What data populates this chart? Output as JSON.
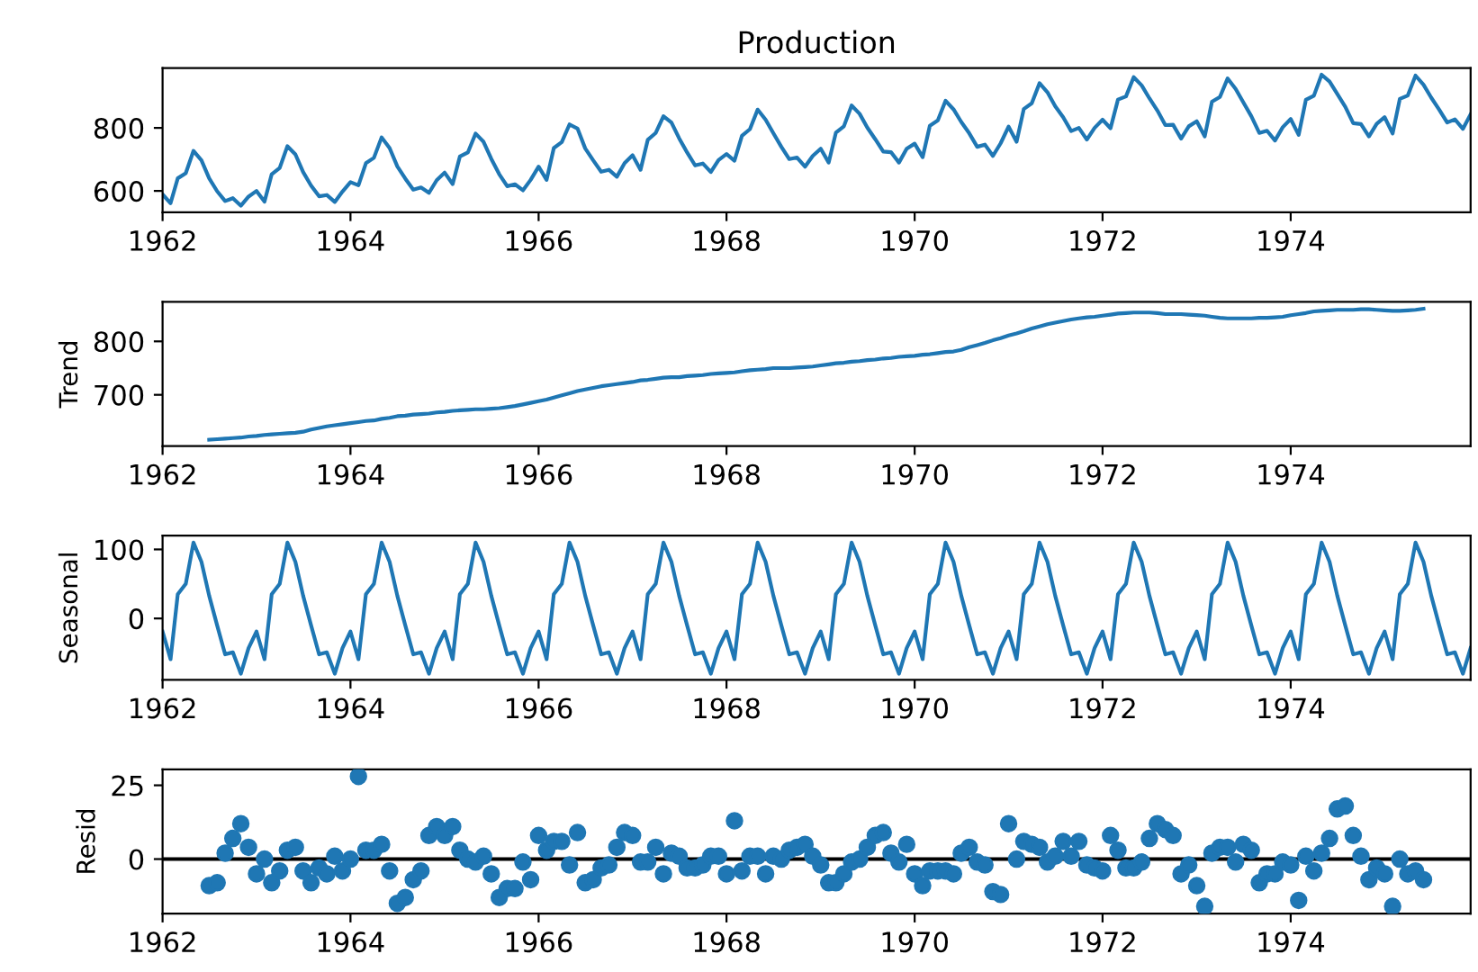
{
  "chart_data": [
    {
      "type": "line",
      "title": "Production",
      "color": "#1f77b4",
      "x": [
        "1962-01",
        "1962-02",
        "1962-03",
        "1962-04",
        "1962-05",
        "1962-06",
        "1962-07",
        "1962-08",
        "1962-09",
        "1962-10",
        "1962-11",
        "1962-12",
        "1963-01",
        "1963-02",
        "1963-03",
        "1963-04",
        "1963-05",
        "1963-06",
        "1963-07",
        "1963-08",
        "1963-09",
        "1963-10",
        "1963-11",
        "1963-12",
        "1964-01",
        "1964-02",
        "1964-03",
        "1964-04",
        "1964-05",
        "1964-06",
        "1964-07",
        "1964-08",
        "1964-09",
        "1964-10",
        "1964-11",
        "1964-12",
        "1965-01",
        "1965-02",
        "1965-03",
        "1965-04",
        "1965-05",
        "1965-06",
        "1965-07",
        "1965-08",
        "1965-09",
        "1965-10",
        "1965-11",
        "1965-12",
        "1966-01",
        "1966-02",
        "1966-03",
        "1966-04",
        "1966-05",
        "1966-06",
        "1966-07",
        "1966-08",
        "1966-09",
        "1966-10",
        "1966-11",
        "1966-12",
        "1967-01",
        "1967-02",
        "1967-03",
        "1967-04",
        "1967-05",
        "1967-06",
        "1967-07",
        "1967-08",
        "1967-09",
        "1967-10",
        "1967-11",
        "1967-12",
        "1968-01",
        "1968-02",
        "1968-03",
        "1968-04",
        "1968-05",
        "1968-06",
        "1968-07",
        "1968-08",
        "1968-09",
        "1968-10",
        "1968-11",
        "1968-12",
        "1969-01",
        "1969-02",
        "1969-03",
        "1969-04",
        "1969-05",
        "1969-06",
        "1969-07",
        "1969-08",
        "1969-09",
        "1969-10",
        "1969-11",
        "1969-12",
        "1970-01",
        "1970-02",
        "1970-03",
        "1970-04",
        "1970-05",
        "1970-06",
        "1970-07",
        "1970-08",
        "1970-09",
        "1970-10",
        "1970-11",
        "1970-12",
        "1971-01",
        "1971-02",
        "1971-03",
        "1971-04",
        "1971-05",
        "1971-06",
        "1971-07",
        "1971-08",
        "1971-09",
        "1971-10",
        "1971-11",
        "1971-12",
        "1972-01",
        "1972-02",
        "1972-03",
        "1972-04",
        "1972-05",
        "1972-06",
        "1972-07",
        "1972-08",
        "1972-09",
        "1972-10",
        "1972-11",
        "1972-12",
        "1973-01",
        "1973-02",
        "1973-03",
        "1973-04",
        "1973-05",
        "1973-06",
        "1973-07",
        "1973-08",
        "1973-09",
        "1973-10",
        "1973-11",
        "1973-12",
        "1974-01",
        "1974-02",
        "1974-03",
        "1974-04",
        "1974-05",
        "1974-06",
        "1974-07",
        "1974-08",
        "1974-09",
        "1974-10",
        "1974-11",
        "1974-12",
        "1975-01",
        "1975-02",
        "1975-03",
        "1975-04",
        "1975-05",
        "1975-06",
        "1975-07",
        "1975-08",
        "1975-09",
        "1975-10",
        "1975-11",
        "1975-12"
      ],
      "values": [
        589,
        561,
        640,
        656,
        727,
        697,
        640,
        599,
        568,
        577,
        553,
        582,
        600,
        566,
        653,
        673,
        742,
        716,
        660,
        617,
        583,
        587,
        565,
        598,
        628,
        618,
        688,
        705,
        770,
        736,
        678,
        639,
        604,
        611,
        594,
        634,
        658,
        622,
        709,
        722,
        782,
        756,
        702,
        653,
        615,
        621,
        602,
        635,
        677,
        635,
        736,
        755,
        811,
        798,
        735,
        697,
        661,
        667,
        645,
        688,
        713,
        667,
        762,
        784,
        837,
        817,
        767,
        722,
        681,
        687,
        660,
        698,
        717,
        696,
        775,
        796,
        858,
        826,
        783,
        740,
        701,
        706,
        677,
        711,
        734,
        690,
        785,
        805,
        871,
        845,
        801,
        764,
        725,
        723,
        690,
        734,
        750,
        707,
        807,
        824,
        886,
        859,
        819,
        783,
        740,
        747,
        711,
        751,
        804,
        756,
        860,
        878,
        942,
        913,
        869,
        834,
        790,
        800,
        763,
        800,
        826,
        799,
        890,
        900,
        961,
        935,
        894,
        855,
        809,
        810,
        766,
        805,
        821,
        773,
        883,
        898,
        957,
        924,
        881,
        837,
        784,
        791,
        760,
        802,
        828,
        778,
        889,
        902,
        969,
        947,
        908,
        867,
        815,
        812,
        773,
        813,
        834,
        782,
        892,
        903,
        966,
        937,
        896,
        858,
        817,
        827,
        797,
        843
      ],
      "xlim": [
        "1962-01",
        "1975-12"
      ],
      "xticks": [
        "1962",
        "1964",
        "1966",
        "1968",
        "1970",
        "1972",
        "1974"
      ],
      "ylim": [
        532,
        990
      ],
      "yticks": [
        600,
        800
      ]
    },
    {
      "type": "line",
      "ylabel": "Trend",
      "color": "#1f77b4",
      "x": [
        "1962-07",
        "1962-08",
        "1962-09",
        "1962-10",
        "1962-11",
        "1962-12",
        "1963-01",
        "1963-02",
        "1963-03",
        "1963-04",
        "1963-05",
        "1963-06",
        "1963-07",
        "1963-08",
        "1963-09",
        "1963-10",
        "1963-11",
        "1963-12",
        "1964-01",
        "1964-02",
        "1964-03",
        "1964-04",
        "1964-05",
        "1964-06",
        "1964-07",
        "1964-08",
        "1964-09",
        "1964-10",
        "1964-11",
        "1964-12",
        "1965-01",
        "1965-02",
        "1965-03",
        "1965-04",
        "1965-05",
        "1965-06",
        "1965-07",
        "1965-08",
        "1965-09",
        "1965-10",
        "1965-11",
        "1965-12",
        "1966-01",
        "1966-02",
        "1966-03",
        "1966-04",
        "1966-05",
        "1966-06",
        "1966-07",
        "1966-08",
        "1966-09",
        "1966-10",
        "1966-11",
        "1966-12",
        "1967-01",
        "1967-02",
        "1967-03",
        "1967-04",
        "1967-05",
        "1967-06",
        "1967-07",
        "1967-08",
        "1967-09",
        "1967-10",
        "1967-11",
        "1967-12",
        "1968-01",
        "1968-02",
        "1968-03",
        "1968-04",
        "1968-05",
        "1968-06",
        "1968-07",
        "1968-08",
        "1968-09",
        "1968-10",
        "1968-11",
        "1968-12",
        "1969-01",
        "1969-02",
        "1969-03",
        "1969-04",
        "1969-05",
        "1969-06",
        "1969-07",
        "1969-08",
        "1969-09",
        "1969-10",
        "1969-11",
        "1969-12",
        "1970-01",
        "1970-02",
        "1970-03",
        "1970-04",
        "1970-05",
        "1970-06",
        "1970-07",
        "1970-08",
        "1970-09",
        "1970-10",
        "1970-11",
        "1970-12",
        "1971-01",
        "1971-02",
        "1971-03",
        "1971-04",
        "1971-05",
        "1971-06",
        "1971-07",
        "1971-08",
        "1971-09",
        "1971-10",
        "1971-11",
        "1971-12",
        "1972-01",
        "1972-02",
        "1972-03",
        "1972-04",
        "1972-05",
        "1972-06",
        "1972-07",
        "1972-08",
        "1972-09",
        "1972-10",
        "1972-11",
        "1972-12",
        "1973-01",
        "1973-02",
        "1973-03",
        "1973-04",
        "1973-05",
        "1973-06",
        "1973-07",
        "1973-08",
        "1973-09",
        "1973-10",
        "1973-11",
        "1973-12",
        "1974-01",
        "1974-02",
        "1974-03",
        "1974-04",
        "1974-05",
        "1974-06",
        "1974-07",
        "1974-08",
        "1974-09",
        "1974-10",
        "1974-11",
        "1974-12",
        "1975-01",
        "1975-02",
        "1975-03",
        "1975-04",
        "1975-05",
        "1975-06"
      ],
      "values": [
        616,
        617,
        618,
        619,
        620,
        622,
        623,
        625,
        626,
        627,
        628,
        629,
        631,
        635,
        638,
        641,
        643,
        645,
        647,
        649,
        651,
        652,
        655,
        657,
        660,
        661,
        663,
        664,
        665,
        667,
        668,
        670,
        671,
        672,
        673,
        673,
        674,
        675,
        677,
        679,
        682,
        685,
        688,
        691,
        695,
        699,
        703,
        707,
        710,
        713,
        716,
        718,
        720,
        722,
        724,
        727,
        728,
        730,
        732,
        733,
        733,
        735,
        736,
        737,
        739,
        740,
        741,
        742,
        744,
        746,
        747,
        748,
        750,
        750,
        750,
        751,
        752,
        753,
        755,
        757,
        759,
        760,
        762,
        763,
        765,
        766,
        768,
        769,
        771,
        772,
        773,
        775,
        776,
        778,
        780,
        781,
        784,
        789,
        793,
        797,
        802,
        806,
        811,
        815,
        819,
        824,
        828,
        832,
        835,
        838,
        841,
        843,
        845,
        846,
        848,
        850,
        852,
        853,
        854,
        854,
        854,
        853,
        851,
        851,
        851,
        850,
        849,
        848,
        846,
        844,
        843,
        843,
        843,
        843,
        844,
        844,
        845,
        846,
        849,
        851,
        853,
        856,
        857,
        858,
        859,
        859,
        859,
        860,
        860,
        859,
        858,
        857,
        857,
        858,
        859,
        861
      ],
      "xlim": [
        "1962-01",
        "1975-12"
      ],
      "xticks": [
        "1962",
        "1964",
        "1966",
        "1968",
        "1970",
        "1972",
        "1974"
      ],
      "ylim": [
        604,
        874
      ],
      "yticks": [
        700,
        800
      ]
    },
    {
      "type": "line",
      "ylabel": "Seasonal",
      "color": "#1f77b4",
      "x": [
        "1962-01",
        "1962-02",
        "1962-03",
        "1962-04",
        "1962-05",
        "1962-06",
        "1962-07",
        "1962-08",
        "1962-09",
        "1962-10",
        "1962-11",
        "1962-12",
        "1963-01",
        "1963-02",
        "1963-03",
        "1963-04",
        "1963-05",
        "1963-06",
        "1963-07",
        "1963-08",
        "1963-09",
        "1963-10",
        "1963-11",
        "1963-12",
        "1964-01",
        "1964-02",
        "1964-03",
        "1964-04",
        "1964-05",
        "1964-06",
        "1964-07",
        "1964-08",
        "1964-09",
        "1964-10",
        "1964-11",
        "1964-12",
        "1965-01",
        "1965-02",
        "1965-03",
        "1965-04",
        "1965-05",
        "1965-06",
        "1965-07",
        "1965-08",
        "1965-09",
        "1965-10",
        "1965-11",
        "1965-12",
        "1966-01",
        "1966-02",
        "1966-03",
        "1966-04",
        "1966-05",
        "1966-06",
        "1966-07",
        "1966-08",
        "1966-09",
        "1966-10",
        "1966-11",
        "1966-12",
        "1967-01",
        "1967-02",
        "1967-03",
        "1967-04",
        "1967-05",
        "1967-06",
        "1967-07",
        "1967-08",
        "1967-09",
        "1967-10",
        "1967-11",
        "1967-12",
        "1968-01",
        "1968-02",
        "1968-03",
        "1968-04",
        "1968-05",
        "1968-06",
        "1968-07",
        "1968-08",
        "1968-09",
        "1968-10",
        "1968-11",
        "1968-12",
        "1969-01",
        "1969-02",
        "1969-03",
        "1969-04",
        "1969-05",
        "1969-06",
        "1969-07",
        "1969-08",
        "1969-09",
        "1969-10",
        "1969-11",
        "1969-12",
        "1970-01",
        "1970-02",
        "1970-03",
        "1970-04",
        "1970-05",
        "1970-06",
        "1970-07",
        "1970-08",
        "1970-09",
        "1970-10",
        "1970-11",
        "1970-12",
        "1971-01",
        "1971-02",
        "1971-03",
        "1971-04",
        "1971-05",
        "1971-06",
        "1971-07",
        "1971-08",
        "1971-09",
        "1971-10",
        "1971-11",
        "1971-12",
        "1972-01",
        "1972-02",
        "1972-03",
        "1972-04",
        "1972-05",
        "1972-06",
        "1972-07",
        "1972-08",
        "1972-09",
        "1972-10",
        "1972-11",
        "1972-12",
        "1973-01",
        "1973-02",
        "1973-03",
        "1973-04",
        "1973-05",
        "1973-06",
        "1973-07",
        "1973-08",
        "1973-09",
        "1973-10",
        "1973-11",
        "1973-12",
        "1974-01",
        "1974-02",
        "1974-03",
        "1974-04",
        "1974-05",
        "1974-06",
        "1974-07",
        "1974-08",
        "1974-09",
        "1974-10",
        "1974-11",
        "1974-12",
        "1975-01",
        "1975-02",
        "1975-03",
        "1975-04",
        "1975-05",
        "1975-06",
        "1975-07",
        "1975-08",
        "1975-09",
        "1975-10",
        "1975-11",
        "1975-12"
      ],
      "values": [
        -19,
        -59,
        35,
        50,
        110,
        82,
        33,
        -10,
        -52,
        -49,
        -80,
        -43,
        -19,
        -59,
        35,
        50,
        110,
        82,
        33,
        -10,
        -52,
        -49,
        -80,
        -43,
        -19,
        -59,
        35,
        50,
        110,
        82,
        33,
        -10,
        -52,
        -49,
        -80,
        -43,
        -19,
        -59,
        35,
        50,
        110,
        82,
        33,
        -10,
        -52,
        -49,
        -80,
        -43,
        -19,
        -59,
        35,
        50,
        110,
        82,
        33,
        -10,
        -52,
        -49,
        -80,
        -43,
        -19,
        -59,
        35,
        50,
        110,
        82,
        33,
        -10,
        -52,
        -49,
        -80,
        -43,
        -19,
        -59,
        35,
        50,
        110,
        82,
        33,
        -10,
        -52,
        -49,
        -80,
        -43,
        -19,
        -59,
        35,
        50,
        110,
        82,
        33,
        -10,
        -52,
        -49,
        -80,
        -43,
        -19,
        -59,
        35,
        50,
        110,
        82,
        33,
        -10,
        -52,
        -49,
        -80,
        -43,
        -19,
        -59,
        35,
        50,
        110,
        82,
        33,
        -10,
        -52,
        -49,
        -80,
        -43,
        -19,
        -59,
        35,
        50,
        110,
        82,
        33,
        -10,
        -52,
        -49,
        -80,
        -43,
        -19,
        -59,
        35,
        50,
        110,
        82,
        33,
        -10,
        -52,
        -49,
        -80,
        -43,
        -19,
        -59,
        35,
        50,
        110,
        82,
        33,
        -10,
        -52,
        -49,
        -80,
        -43,
        -19,
        -59,
        35,
        50,
        110,
        82,
        33,
        -10,
        -52,
        -49,
        -80,
        -43
      ],
      "xlim": [
        "1962-01",
        "1975-12"
      ],
      "xticks": [
        "1962",
        "1964",
        "1966",
        "1968",
        "1970",
        "1972",
        "1974"
      ],
      "ylim": [
        -89,
        120
      ],
      "yticks": [
        0,
        100
      ]
    },
    {
      "type": "scatter",
      "ylabel": "Resid",
      "color": "#1f77b4",
      "marker": "circle",
      "x": [
        "1962-07",
        "1962-08",
        "1962-09",
        "1962-10",
        "1962-11",
        "1962-12",
        "1963-01",
        "1963-02",
        "1963-03",
        "1963-04",
        "1963-05",
        "1963-06",
        "1963-07",
        "1963-08",
        "1963-09",
        "1963-10",
        "1963-11",
        "1963-12",
        "1964-01",
        "1964-02",
        "1964-03",
        "1964-04",
        "1964-05",
        "1964-06",
        "1964-07",
        "1964-08",
        "1964-09",
        "1964-10",
        "1964-11",
        "1964-12",
        "1965-01",
        "1965-02",
        "1965-03",
        "1965-04",
        "1965-05",
        "1965-06",
        "1965-07",
        "1965-08",
        "1965-09",
        "1965-10",
        "1965-11",
        "1965-12",
        "1966-01",
        "1966-02",
        "1966-03",
        "1966-04",
        "1966-05",
        "1966-06",
        "1966-07",
        "1966-08",
        "1966-09",
        "1966-10",
        "1966-11",
        "1966-12",
        "1967-01",
        "1967-02",
        "1967-03",
        "1967-04",
        "1967-05",
        "1967-06",
        "1967-07",
        "1967-08",
        "1967-09",
        "1967-10",
        "1967-11",
        "1967-12",
        "1968-01",
        "1968-02",
        "1968-03",
        "1968-04",
        "1968-05",
        "1968-06",
        "1968-07",
        "1968-08",
        "1968-09",
        "1968-10",
        "1968-11",
        "1968-12",
        "1969-01",
        "1969-02",
        "1969-03",
        "1969-04",
        "1969-05",
        "1969-06",
        "1969-07",
        "1969-08",
        "1969-09",
        "1969-10",
        "1969-11",
        "1969-12",
        "1970-01",
        "1970-02",
        "1970-03",
        "1970-04",
        "1970-05",
        "1970-06",
        "1970-07",
        "1970-08",
        "1970-09",
        "1970-10",
        "1970-11",
        "1970-12",
        "1971-01",
        "1971-02",
        "1971-03",
        "1971-04",
        "1971-05",
        "1971-06",
        "1971-07",
        "1971-08",
        "1971-09",
        "1971-10",
        "1971-11",
        "1971-12",
        "1972-01",
        "1972-02",
        "1972-03",
        "1972-04",
        "1972-05",
        "1972-06",
        "1972-07",
        "1972-08",
        "1972-09",
        "1972-10",
        "1972-11",
        "1972-12",
        "1973-01",
        "1973-02",
        "1973-03",
        "1973-04",
        "1973-05",
        "1973-06",
        "1973-07",
        "1973-08",
        "1973-09",
        "1973-10",
        "1973-11",
        "1973-12",
        "1974-01",
        "1974-02",
        "1974-03",
        "1974-04",
        "1974-05",
        "1974-06",
        "1974-07",
        "1974-08",
        "1974-09",
        "1974-10",
        "1974-11",
        "1974-12",
        "1975-01",
        "1975-02",
        "1975-03",
        "1975-04",
        "1975-05",
        "1975-06"
      ],
      "values": [
        -9,
        -8,
        2,
        7,
        12,
        4,
        -5,
        0,
        -8,
        -4,
        3,
        4,
        -4,
        -8,
        -3,
        -5,
        1,
        -4,
        0,
        28,
        3,
        3,
        5,
        -4,
        -15,
        -13,
        -7,
        -4,
        8,
        11,
        8,
        11,
        3,
        0,
        -1,
        1,
        -5,
        -13,
        -10,
        -10,
        -1,
        -7,
        8,
        3,
        6,
        6,
        -2,
        9,
        -8,
        -7,
        -3,
        -2,
        4,
        9,
        8,
        -1,
        -1,
        4,
        -5,
        2,
        1,
        -3,
        -3,
        -2,
        1,
        1,
        -5,
        13,
        -4,
        1,
        1,
        -5,
        1,
        0,
        3,
        4,
        5,
        1,
        -2,
        -8,
        -8,
        -5,
        -1,
        0,
        4,
        8,
        9,
        2,
        -1,
        5,
        -5,
        -9,
        -4,
        -4,
        -4,
        -5,
        2,
        4,
        -1,
        -2,
        -11,
        -12,
        12,
        0,
        6,
        5,
        4,
        -1,
        1,
        6,
        1,
        6,
        -2,
        -3,
        -4,
        8,
        3,
        -3,
        -3,
        -1,
        7,
        12,
        10,
        8,
        -5,
        -2,
        -9,
        -16,
        2,
        4,
        4,
        -1,
        5,
        3,
        -8,
        -5,
        -5,
        -1,
        -2,
        -14,
        1,
        -4,
        2,
        7,
        17,
        18,
        8,
        1,
        -7,
        -3,
        -5,
        -16,
        0,
        -5,
        -4,
        -7
      ],
      "ref_lines": [
        {
          "axis": "y",
          "value": 0,
          "color": "#000000"
        }
      ],
      "xlim": [
        "1962-01",
        "1975-12"
      ],
      "xticks": [
        "1962",
        "1964",
        "1966",
        "1968",
        "1970",
        "1972",
        "1974"
      ],
      "ylim": [
        -18.5,
        30.4
      ],
      "yticks": [
        0,
        25
      ]
    }
  ]
}
